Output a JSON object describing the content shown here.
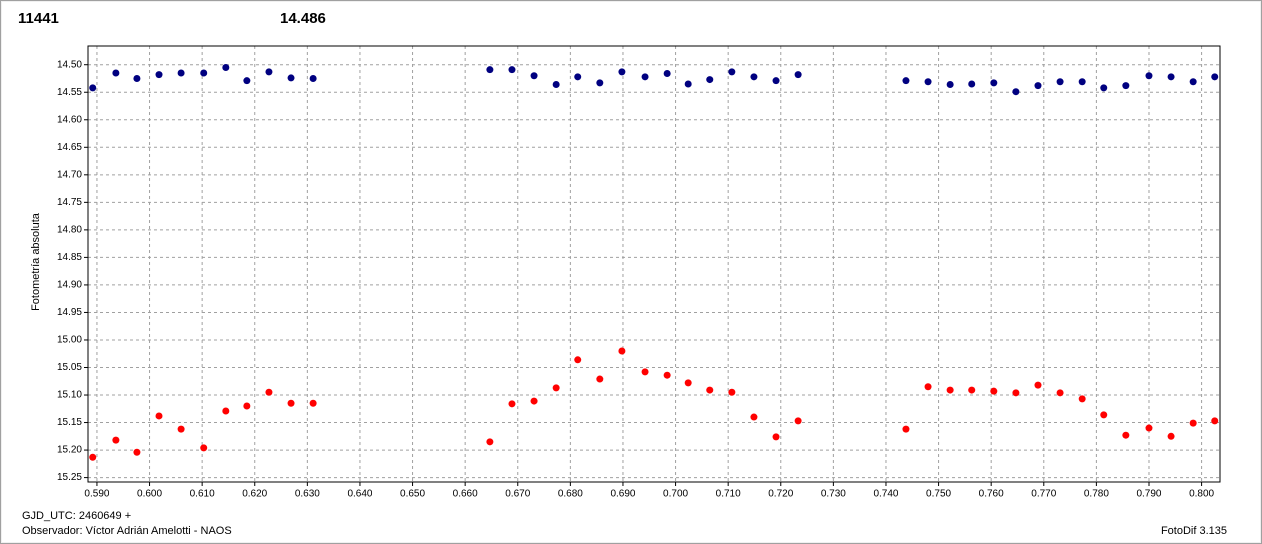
{
  "chart_data": {
    "type": "scatter",
    "header_left": "11441",
    "header_left_color": "#ff0000",
    "header_right": "14.486",
    "header_right_color": "#000080",
    "ylabel": "Fotometría absoluta",
    "footer_line1": "GJD_UTC: 2460649 +",
    "footer_line2": "Observador: Víctor Adrián Amelotti - NAOS",
    "footer_right": "FotoDif 3.135",
    "y_inverted": true,
    "grid": true,
    "xlim": [
      0.5883,
      0.8035
    ],
    "ylim": [
      14.466,
      15.258
    ],
    "xticks": [
      {
        "value": 0.59,
        "label": "0.590"
      },
      {
        "value": 0.6,
        "label": "0.600"
      },
      {
        "value": 0.61,
        "label": "0.610"
      },
      {
        "value": 0.62,
        "label": "0.620"
      },
      {
        "value": 0.63,
        "label": "0.630"
      },
      {
        "value": 0.64,
        "label": "0.640"
      },
      {
        "value": 0.65,
        "label": "0.650"
      },
      {
        "value": 0.66,
        "label": "0.660"
      },
      {
        "value": 0.67,
        "label": "0.670"
      },
      {
        "value": 0.68,
        "label": "0.680"
      },
      {
        "value": 0.69,
        "label": "0.690"
      },
      {
        "value": 0.7,
        "label": "0.700"
      },
      {
        "value": 0.71,
        "label": "0.710"
      },
      {
        "value": 0.72,
        "label": "0.720"
      },
      {
        "value": 0.73,
        "label": "0.730"
      },
      {
        "value": 0.74,
        "label": "0.740"
      },
      {
        "value": 0.75,
        "label": "0.750"
      },
      {
        "value": 0.76,
        "label": "0.760"
      },
      {
        "value": 0.77,
        "label": "0.770"
      },
      {
        "value": 0.78,
        "label": "0.780"
      },
      {
        "value": 0.79,
        "label": "0.790"
      },
      {
        "value": 0.8,
        "label": "0.800"
      }
    ],
    "yticks": [
      {
        "value": 14.5,
        "label": "14.50"
      },
      {
        "value": 14.55,
        "label": "14.55"
      },
      {
        "value": 14.6,
        "label": "14.60"
      },
      {
        "value": 14.65,
        "label": "14.65"
      },
      {
        "value": 14.7,
        "label": "14.70"
      },
      {
        "value": 14.75,
        "label": "14.75"
      },
      {
        "value": 14.8,
        "label": "14.80"
      },
      {
        "value": 14.85,
        "label": "14.85"
      },
      {
        "value": 14.9,
        "label": "14.90"
      },
      {
        "value": 14.95,
        "label": "14.95"
      },
      {
        "value": 15.0,
        "label": "15.00"
      },
      {
        "value": 15.05,
        "label": "15.05"
      },
      {
        "value": 15.1,
        "label": "15.10"
      },
      {
        "value": 15.15,
        "label": "15.15"
      },
      {
        "value": 15.2,
        "label": "15.20"
      },
      {
        "value": 15.25,
        "label": "15.25"
      }
    ],
    "x": [
      0.5892,
      0.5936,
      0.5976,
      0.6018,
      0.606,
      0.6103,
      0.6145,
      0.6185,
      0.6227,
      0.6269,
      0.6311,
      0.6647,
      0.6689,
      0.6731,
      0.6773,
      0.6814,
      0.6856,
      0.6898,
      0.6942,
      0.6984,
      0.7024,
      0.7065,
      0.7107,
      0.7149,
      0.7191,
      0.7233,
      0.7438,
      0.748,
      0.7522,
      0.7563,
      0.7605,
      0.7647,
      0.7689,
      0.7731,
      0.7773,
      0.7814,
      0.7856,
      0.79,
      0.7942,
      0.7984,
      0.8025
    ],
    "series": [
      {
        "color": "#000080",
        "values": [
          14.542,
          14.515,
          14.525,
          14.518,
          14.515,
          14.515,
          14.505,
          14.529,
          14.513,
          14.524,
          14.525,
          14.509,
          14.509,
          14.52,
          14.536,
          14.522,
          14.533,
          14.513,
          14.522,
          14.516,
          14.535,
          14.527,
          14.513,
          14.522,
          14.529,
          14.518,
          14.529,
          14.531,
          14.536,
          14.535,
          14.533,
          14.549,
          14.538,
          14.531,
          14.531,
          14.542,
          14.538,
          14.52,
          14.522,
          14.531,
          14.522
        ]
      },
      {
        "color": "#ff0000",
        "values": [
          15.213,
          15.182,
          15.204,
          15.138,
          15.162,
          15.196,
          15.129,
          15.12,
          15.095,
          15.115,
          15.115,
          15.185,
          15.116,
          15.111,
          15.087,
          15.036,
          15.071,
          15.02,
          15.058,
          15.064,
          15.078,
          15.091,
          15.095,
          15.14,
          15.176,
          15.147,
          15.162,
          15.085,
          15.091,
          15.091,
          15.093,
          15.096,
          15.082,
          15.096,
          15.107,
          15.136,
          15.173,
          15.16,
          15.175,
          15.151,
          15.147
        ]
      }
    ]
  }
}
